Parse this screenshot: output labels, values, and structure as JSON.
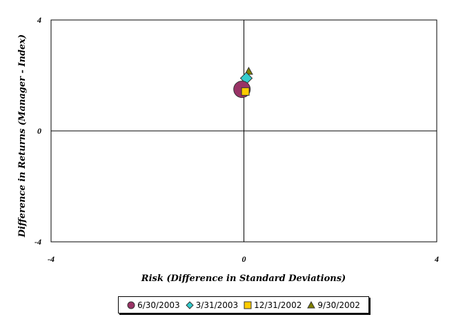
{
  "chart_data": {
    "type": "scatter",
    "xlabel": "Risk (Difference in Standard Deviations)",
    "ylabel": "Difference in Returns (Manager - Index)",
    "xlim": [
      -4,
      4
    ],
    "ylim": [
      -4,
      4
    ],
    "x_ticks": [
      "-4",
      "0",
      "4"
    ],
    "y_ticks": [
      "4",
      "0",
      "-4"
    ],
    "grid": false,
    "quadrant_lines": true,
    "legend_position": "bottom",
    "series": [
      {
        "name": "6/30/2003",
        "marker": "circle",
        "color": "#993366",
        "x": -0.04,
        "y": 1.5
      },
      {
        "name": "3/31/2003",
        "marker": "diamond",
        "color": "#33CCCC",
        "x": 0.05,
        "y": 1.9
      },
      {
        "name": "12/31/2002",
        "marker": "square",
        "color": "#FFCC00",
        "x": 0.03,
        "y": 1.42
      },
      {
        "name": "9/30/2002",
        "marker": "triangle",
        "color": "#808000",
        "x": 0.1,
        "y": 2.15
      }
    ]
  }
}
